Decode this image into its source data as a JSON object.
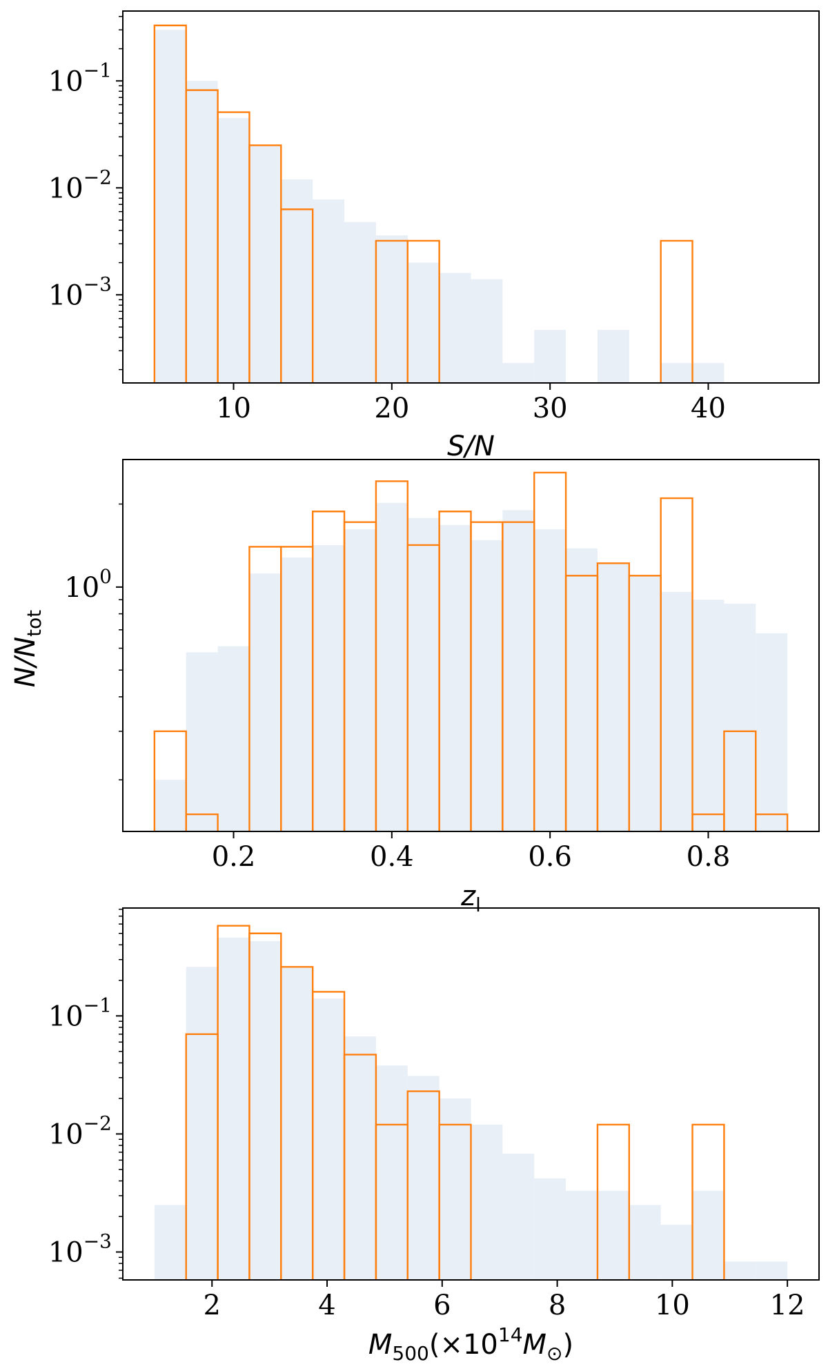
{
  "colors": {
    "fill": "#e8eff6",
    "step": "#ff7f0e",
    "axes": "#000000"
  },
  "figure": {
    "ylabel_main": "N/N",
    "ylabel_sub": "tot"
  },
  "chart_data": [
    {
      "type": "bar",
      "yscale": "log",
      "xlim": [
        3,
        47
      ],
      "ylim": [
        0.00015,
        0.45
      ],
      "xticks": [
        10,
        20,
        30,
        40
      ],
      "yticks": [
        {
          "value": 0.1,
          "base": "10",
          "exp": "−1"
        },
        {
          "value": 0.01,
          "base": "10",
          "exp": "−2"
        },
        {
          "value": 0.001,
          "base": "10",
          "exp": "−3"
        }
      ],
      "xlabel": "S/N",
      "bin_edges": [
        5,
        7,
        9,
        11,
        13,
        15,
        17,
        19,
        21,
        23,
        25,
        27,
        29,
        31,
        33,
        35,
        37,
        39,
        41,
        43,
        45
      ],
      "series": [
        {
          "kind": "filled",
          "values": [
            0.3,
            0.1,
            0.045,
            0.025,
            0.012,
            0.0078,
            0.0048,
            0.0036,
            0.002,
            0.0016,
            0.0014,
            0.00023,
            0.00047,
            0,
            0.00047,
            0,
            0.00023,
            0.00023,
            0,
            0
          ]
        },
        {
          "kind": "step",
          "values": [
            0.33,
            0.082,
            0.051,
            0.025,
            0.0063,
            0,
            0,
            0.0032,
            0.0032,
            0,
            0,
            0,
            0,
            0,
            0,
            0,
            0.0032,
            0,
            0,
            0
          ]
        }
      ]
    },
    {
      "type": "bar",
      "yscale": "log",
      "xlim": [
        0.06,
        0.94
      ],
      "ylim": [
        0.13,
        2.9
      ],
      "xticks": [
        0.2,
        0.4,
        0.6,
        0.8
      ],
      "yticks": [
        {
          "value": 1.0,
          "base": "10",
          "exp": "0"
        }
      ],
      "xlabel": "z",
      "xlabel_sub": "l",
      "bin_edges": [
        0.1,
        0.14,
        0.18,
        0.22,
        0.26,
        0.3,
        0.34,
        0.38,
        0.42,
        0.46,
        0.5,
        0.54,
        0.58,
        0.62,
        0.66,
        0.7,
        0.74,
        0.78,
        0.82,
        0.86,
        0.9
      ],
      "series": [
        {
          "kind": "filled",
          "values": [
            0.2,
            0.58,
            0.61,
            1.12,
            1.28,
            1.42,
            1.62,
            2.02,
            1.78,
            1.68,
            1.48,
            1.9,
            1.62,
            1.38,
            1.22,
            1.1,
            0.96,
            0.9,
            0.87,
            0.68
          ]
        },
        {
          "kind": "step",
          "values": [
            0.3,
            0.15,
            0,
            1.4,
            1.4,
            1.88,
            1.72,
            2.42,
            1.42,
            1.88,
            1.72,
            1.72,
            2.6,
            1.1,
            1.22,
            1.1,
            2.1,
            0.15,
            0.3,
            0.15
          ]
        }
      ]
    },
    {
      "type": "bar",
      "yscale": "log",
      "xlim": [
        0.45,
        12.55
      ],
      "ylim": [
        0.00058,
        0.82
      ],
      "xticks": [
        2,
        4,
        6,
        8,
        10,
        12
      ],
      "yticks": [
        {
          "value": 0.1,
          "base": "10",
          "exp": "−1"
        },
        {
          "value": 0.01,
          "base": "10",
          "exp": "−2"
        },
        {
          "value": 0.001,
          "base": "10",
          "exp": "−3"
        }
      ],
      "xlabel": "M",
      "xlabel_sub": "500",
      "xlabel_rest": "(×10",
      "xlabel_sup": "14",
      "xlabel_m2": "M",
      "xlabel_sub2": "⊙",
      "xlabel_close": ")",
      "bin_edges": [
        1.0,
        1.55,
        2.1,
        2.65,
        3.2,
        3.75,
        4.3,
        4.85,
        5.4,
        5.95,
        6.5,
        7.05,
        7.6,
        8.15,
        8.7,
        9.25,
        9.8,
        10.35,
        10.9,
        11.45,
        12.0
      ],
      "series": [
        {
          "kind": "filled",
          "values": [
            0.0025,
            0.26,
            0.46,
            0.43,
            0.26,
            0.14,
            0.067,
            0.038,
            0.031,
            0.02,
            0.012,
            0.0068,
            0.0042,
            0.0033,
            0.0033,
            0.0025,
            0.0017,
            0.0033,
            0.00083,
            0.00083
          ]
        },
        {
          "kind": "step",
          "values": [
            0,
            0.07,
            0.58,
            0.5,
            0.26,
            0.16,
            0.047,
            0.012,
            0.023,
            0.012,
            0,
            0,
            0,
            0,
            0.012,
            0,
            0,
            0.012,
            0,
            0
          ]
        }
      ]
    }
  ]
}
